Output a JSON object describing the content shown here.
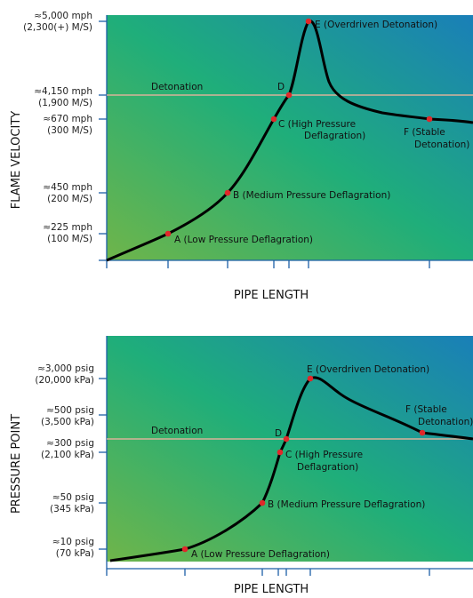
{
  "charts": [
    {
      "id": "top",
      "y_axis_title": "FLAME VELOCITY",
      "x_axis_title": "PIPE LENGTH",
      "detonation_label": "Detonation",
      "y_ticks": [
        {
          "line1": "≈5,000 mph",
          "line2": "(2,300(+) M/S)"
        },
        {
          "line1": "≈4,150 mph",
          "line2": "(1,900 M/S)"
        },
        {
          "line1": "≈670 mph",
          "line2": "(300 M/S)"
        },
        {
          "line1": "≈450 mph",
          "line2": "(200 M/S)"
        },
        {
          "line1": "≈225 mph",
          "line2": "(100 M/S)"
        }
      ],
      "points": [
        {
          "id": "A",
          "lines": [
            "A (Low Pressure Deflagration)"
          ]
        },
        {
          "id": "B",
          "lines": [
            "B (Medium Pressure Deflagration)"
          ]
        },
        {
          "id": "C",
          "lines": [
            "C (High Pressure",
            "Deflagration)"
          ]
        },
        {
          "id": "D",
          "lines": [
            "D"
          ]
        },
        {
          "id": "E",
          "lines": [
            "E (Overdriven Detonation)"
          ]
        },
        {
          "id": "F",
          "lines": [
            "F (Stable",
            "Detonation)"
          ]
        }
      ]
    },
    {
      "id": "bottom",
      "y_axis_title": "PRESSURE POINT",
      "x_axis_title": "PIPE LENGTH",
      "detonation_label": "Detonation",
      "y_ticks": [
        {
          "line1": "≈3,000 psig",
          "line2": "(20,000 kPa)"
        },
        {
          "line1": "≈500 psig",
          "line2": "(3,500 kPa)"
        },
        {
          "line1": "≈300 psig",
          "line2": "(2,100 kPa)"
        },
        {
          "line1": "≈50 psig",
          "line2": "(345 kPa)"
        },
        {
          "line1": "≈10 psig",
          "line2": "(70 kPa)"
        }
      ],
      "points": [
        {
          "id": "A",
          "lines": [
            "A (Low Pressure Deflagration)"
          ]
        },
        {
          "id": "B",
          "lines": [
            "B (Medium Pressure Deflagration)"
          ]
        },
        {
          "id": "C",
          "lines": [
            "C (High Pressure",
            "Deflagration)"
          ]
        },
        {
          "id": "D",
          "lines": [
            "D"
          ]
        },
        {
          "id": "E",
          "lines": [
            "E (Overdriven Detonation)"
          ]
        },
        {
          "id": "F",
          "lines": [
            "F (Stable",
            "Detonation)"
          ]
        }
      ]
    }
  ],
  "colors": {
    "gradient_left": "#6fb54a",
    "gradient_mid": "#1fae7a",
    "gradient_right": "#1a7fb8",
    "axis": "#1c5fa8",
    "curve": "#000000",
    "marker": "#e0282a",
    "detonation_line": "#d9b29a"
  }
}
